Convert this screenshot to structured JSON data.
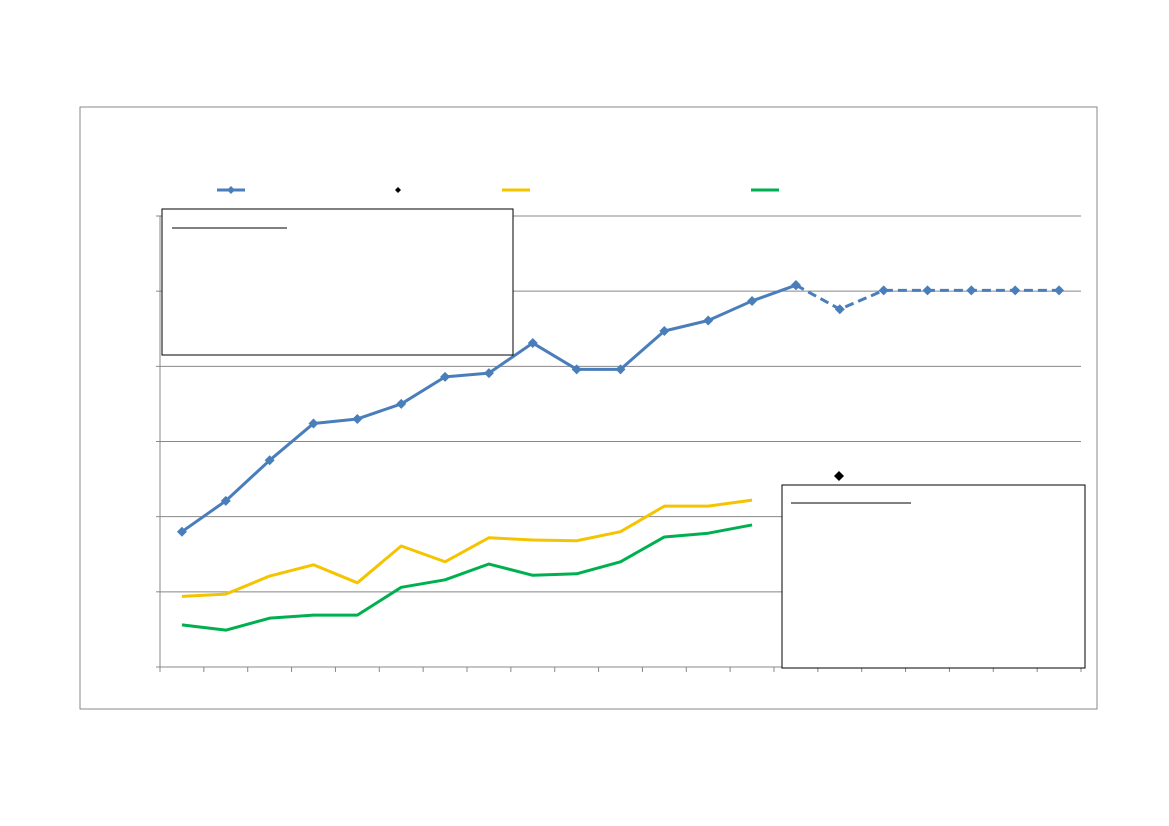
{
  "chart_data": {
    "type": "line",
    "categories": [
      null,
      null,
      null,
      null,
      null,
      null,
      null,
      null,
      null,
      null,
      null,
      null,
      null,
      null,
      null,
      null,
      null,
      null,
      null,
      null,
      null
    ],
    "ylim": [
      0,
      6
    ],
    "yticks": [
      0,
      1,
      2,
      3,
      4,
      5,
      6
    ],
    "grid": true,
    "series": [
      {
        "color": "#4a7ebb",
        "marker": "diamond",
        "dash": false,
        "values": [
          1.8,
          2.21,
          2.75,
          3.24,
          3.3,
          3.5,
          3.86,
          3.91,
          4.31,
          3.96,
          3.96,
          4.47,
          4.61,
          4.87,
          5.08,
          null,
          null,
          null,
          null,
          null,
          null
        ]
      },
      {
        "color": "#4a7ebb",
        "marker": "diamond",
        "dash": true,
        "values": [
          null,
          null,
          null,
          null,
          null,
          null,
          null,
          null,
          null,
          null,
          null,
          null,
          null,
          null,
          5.08,
          4.76,
          5.01,
          5.01,
          5.01,
          5.01,
          5.01
        ]
      },
      {
        "color": "#f5c400",
        "marker": "none",
        "dash": false,
        "values": [
          0.94,
          0.97,
          1.21,
          1.36,
          1.12,
          1.61,
          1.4,
          1.72,
          1.69,
          1.68,
          1.8,
          2.14,
          2.14,
          2.22,
          null,
          null,
          null,
          null,
          null,
          null,
          null
        ]
      },
      {
        "color": "#00b050",
        "marker": "none",
        "dash": false,
        "values": [
          0.56,
          0.49,
          0.65,
          0.69,
          0.69,
          1.06,
          1.16,
          1.37,
          1.22,
          1.24,
          1.4,
          1.73,
          1.78,
          1.89,
          null,
          null,
          null,
          null,
          null,
          null,
          null
        ]
      }
    ]
  }
}
